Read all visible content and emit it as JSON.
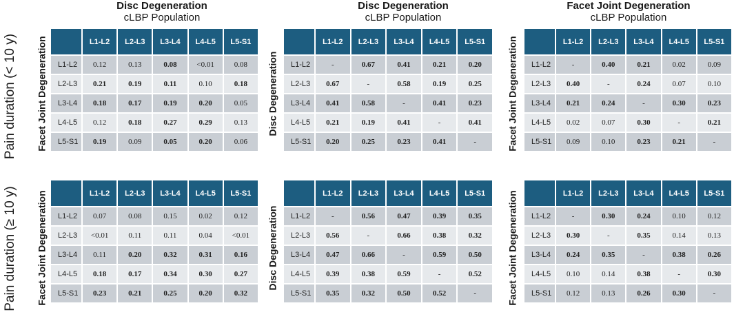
{
  "columns": [
    {
      "title": "Disc Degeneration",
      "subtitle": "cLBP Population"
    },
    {
      "title": "Disc Degeneration",
      "subtitle": "cLBP Population"
    },
    {
      "title": "Facet Joint Degeneration",
      "subtitle": "cLBP Population"
    }
  ],
  "rows": [
    {
      "label": "Pain duration (< 10 y)"
    },
    {
      "label": "Pain duration (≥ 10 y)"
    }
  ],
  "side_labels": {
    "facet": "Facet Joint Degeneration",
    "disc": "Disc Degeneration"
  },
  "levels": [
    "L1-L2",
    "L2-L3",
    "L3-L4",
    "L4-L5",
    "L5-S1"
  ],
  "tables": {
    "t00": {
      "side": "Facet Joint Degeneration",
      "values": [
        [
          "0.12",
          "0.13",
          "0.08",
          "<0.01",
          "0.08"
        ],
        [
          "0.21",
          "0.19",
          "0.11",
          "0.10",
          "0.18"
        ],
        [
          "0.18",
          "0.17",
          "0.19",
          "0.20",
          "0.05"
        ],
        [
          "0.12",
          "0.18",
          "0.27",
          "0.29",
          "0.13"
        ],
        [
          "0.19",
          "0.09",
          "0.05",
          "0.20",
          "0.06"
        ]
      ],
      "bold": [
        [
          0,
          0,
          1,
          0,
          0
        ],
        [
          1,
          1,
          1,
          0,
          1
        ],
        [
          1,
          1,
          1,
          1,
          0
        ],
        [
          0,
          1,
          1,
          1,
          0
        ],
        [
          1,
          0,
          1,
          1,
          0
        ]
      ]
    },
    "t01": {
      "side": "Disc Degeneration",
      "values": [
        [
          "-",
          "0.67",
          "0.41",
          "0.21",
          "0.20"
        ],
        [
          "0.67",
          "-",
          "0.58",
          "0.19",
          "0.25"
        ],
        [
          "0.41",
          "0.58",
          "-",
          "0.41",
          "0.23"
        ],
        [
          "0.21",
          "0.19",
          "0.41",
          "-",
          "0.41"
        ],
        [
          "0.20",
          "0.25",
          "0.23",
          "0.41",
          "-"
        ]
      ],
      "bold": [
        [
          0,
          1,
          1,
          1,
          1
        ],
        [
          1,
          0,
          1,
          1,
          1
        ],
        [
          1,
          1,
          0,
          1,
          1
        ],
        [
          1,
          1,
          1,
          0,
          1
        ],
        [
          1,
          1,
          1,
          1,
          0
        ]
      ]
    },
    "t02": {
      "side": "Facet Joint Degeneration",
      "values": [
        [
          "-",
          "0.40",
          "0.21",
          "0.02",
          "0.09"
        ],
        [
          "0.40",
          "-",
          "0.24",
          "0.07",
          "0.10"
        ],
        [
          "0.21",
          "0.24",
          "-",
          "0.30",
          "0.23"
        ],
        [
          "0.02",
          "0.07",
          "0.30",
          "-",
          "0.21"
        ],
        [
          "0.09",
          "0.10",
          "0.23",
          "0.21",
          "-"
        ]
      ],
      "bold": [
        [
          0,
          1,
          1,
          0,
          0
        ],
        [
          1,
          0,
          1,
          0,
          0
        ],
        [
          1,
          1,
          0,
          1,
          1
        ],
        [
          0,
          0,
          1,
          0,
          1
        ],
        [
          0,
          0,
          1,
          1,
          0
        ]
      ]
    },
    "t10": {
      "side": "Facet Joint Degeneration",
      "values": [
        [
          "0.07",
          "0.08",
          "0.15",
          "0.02",
          "0.12"
        ],
        [
          "<0.01",
          "0.11",
          "0.11",
          "0.04",
          "<0.01"
        ],
        [
          "0.11",
          "0.20",
          "0.32",
          "0.31",
          "0.16"
        ],
        [
          "0.18",
          "0.17",
          "0.34",
          "0.30",
          "0.27"
        ],
        [
          "0.23",
          "0.21",
          "0.25",
          "0.20",
          "0.32"
        ]
      ],
      "bold": [
        [
          0,
          0,
          0,
          0,
          0
        ],
        [
          0,
          0,
          0,
          0,
          0
        ],
        [
          0,
          1,
          1,
          1,
          1
        ],
        [
          1,
          1,
          1,
          1,
          1
        ],
        [
          1,
          1,
          1,
          1,
          1
        ]
      ]
    },
    "t11": {
      "side": "Disc Degeneration",
      "values": [
        [
          "-",
          "0.56",
          "0.47",
          "0.39",
          "0.35"
        ],
        [
          "0.56",
          "-",
          "0.66",
          "0.38",
          "0.32"
        ],
        [
          "0.47",
          "0.66",
          "-",
          "0.59",
          "0.50"
        ],
        [
          "0.39",
          "0.38",
          "0.59",
          "-",
          "0.52"
        ],
        [
          "0.35",
          "0.32",
          "0.50",
          "0.52",
          "-"
        ]
      ],
      "bold": [
        [
          0,
          1,
          1,
          1,
          1
        ],
        [
          1,
          0,
          1,
          1,
          1
        ],
        [
          1,
          1,
          0,
          1,
          1
        ],
        [
          1,
          1,
          1,
          0,
          1
        ],
        [
          1,
          1,
          1,
          1,
          0
        ]
      ]
    },
    "t12": {
      "side": "Facet Joint Degeneration",
      "values": [
        [
          "-",
          "0.30",
          "0.24",
          "0.10",
          "0.12"
        ],
        [
          "0.30",
          "-",
          "0.35",
          "0.14",
          "0.13"
        ],
        [
          "0.24",
          "0.35",
          "-",
          "0.38",
          "0.26"
        ],
        [
          "0.10",
          "0.14",
          "0.38",
          "-",
          "0.30"
        ],
        [
          "0.12",
          "0.13",
          "0.26",
          "0.30",
          "-"
        ]
      ],
      "bold": [
        [
          0,
          1,
          1,
          0,
          0
        ],
        [
          1,
          0,
          1,
          0,
          0
        ],
        [
          1,
          1,
          0,
          1,
          1
        ],
        [
          0,
          0,
          1,
          0,
          1
        ],
        [
          0,
          0,
          1,
          1,
          0
        ]
      ]
    }
  }
}
